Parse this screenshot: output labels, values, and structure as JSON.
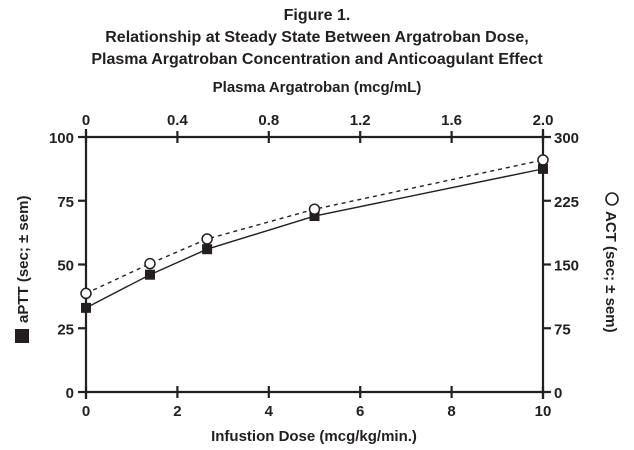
{
  "chart_data": {
    "type": "line",
    "title": "Figure 1.",
    "subtitle": [
      "Relationship at Steady State Between Argatroban Dose,",
      "Plasma Argatroban Concentration and Anticoagulant Effect"
    ],
    "xlabel": "Infustion Dose (mcg/kg/min.)",
    "xlim": [
      0,
      10
    ],
    "xticks": [
      "0",
      "2",
      "4",
      "6",
      "8",
      "10"
    ],
    "x2label": "Plasma Argatroban (mcg/mL)",
    "x2lim": [
      0,
      2.0
    ],
    "x2ticks": [
      "0",
      "0.4",
      "0.8",
      "1.2",
      "1.6",
      "2.0"
    ],
    "ylabel": "aPTT (sec; ± sem)",
    "ylim": [
      0,
      100
    ],
    "yticks": [
      "0",
      "25",
      "50",
      "75",
      "100"
    ],
    "y2label": "ACT (sec; ± sem)",
    "y2lim": [
      0,
      300
    ],
    "y2ticks": [
      "0",
      "75",
      "150",
      "225",
      "300"
    ],
    "grid": false,
    "x": [
      0,
      1.4,
      2.65,
      5.0,
      10
    ],
    "series": [
      {
        "name": "aPTT",
        "axis": "left",
        "marker": "filled-square",
        "line": "solid",
        "values": [
          33,
          46,
          56,
          69,
          87.5
        ]
      },
      {
        "name": "ACT",
        "axis": "right",
        "marker": "open-circle",
        "line": "dashed",
        "values": [
          116,
          151,
          180,
          215,
          273
        ]
      }
    ],
    "colors": {
      "ink": "#231f20",
      "background": "#ffffff"
    }
  }
}
